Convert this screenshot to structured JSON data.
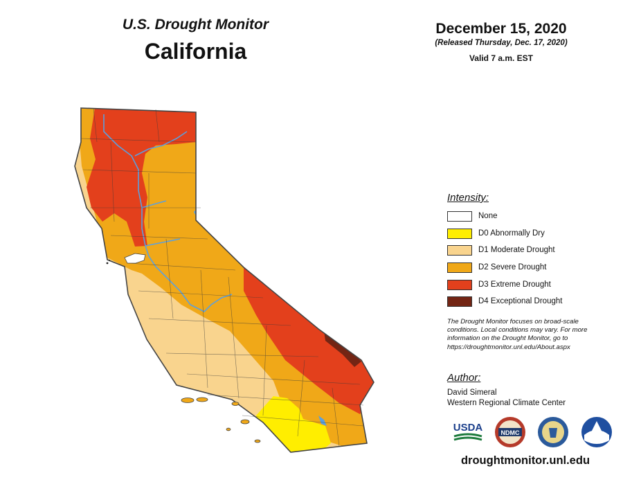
{
  "header": {
    "monitor_title": "U.S. Drought Monitor",
    "state": "California",
    "date": "December 15, 2020",
    "released": "(Released Thursday, Dec. 17, 2020)",
    "valid": "Valid 7 a.m. EST"
  },
  "legend": {
    "title": "Intensity:",
    "items": [
      {
        "label": "None",
        "color": "#ffffff"
      },
      {
        "label": "D0 Abnormally Dry",
        "color": "#ffee00"
      },
      {
        "label": "D1 Moderate Drought",
        "color": "#f9d48e"
      },
      {
        "label": "D2 Severe Drought",
        "color": "#f0a818"
      },
      {
        "label": "D3 Extreme Drought",
        "color": "#e3401c"
      },
      {
        "label": "D4 Exceptional Drought",
        "color": "#732514"
      }
    ]
  },
  "note": "The Drought Monitor focuses on broad-scale conditions. Local conditions may vary. For more information on the Drought Monitor, go to https://droughtmonitor.unl.edu/About.aspx",
  "author": {
    "title": "Author:",
    "name": "David Simeral",
    "organization": "Western Regional Climate Center"
  },
  "logos": [
    {
      "name": "usda-logo",
      "text": "USDA"
    },
    {
      "name": "ndmc-logo",
      "text": "NDMC"
    },
    {
      "name": "doc-seal-logo",
      "text": ""
    },
    {
      "name": "noaa-logo",
      "text": ""
    }
  ],
  "website": "droughtmonitor.unl.edu",
  "colors": {
    "none": "#ffffff",
    "d0": "#ffee00",
    "d1": "#f9d48e",
    "d2": "#f0a818",
    "d3": "#e3401c",
    "d4": "#732514",
    "water": "#5aa0e0",
    "outline": "#444444"
  }
}
